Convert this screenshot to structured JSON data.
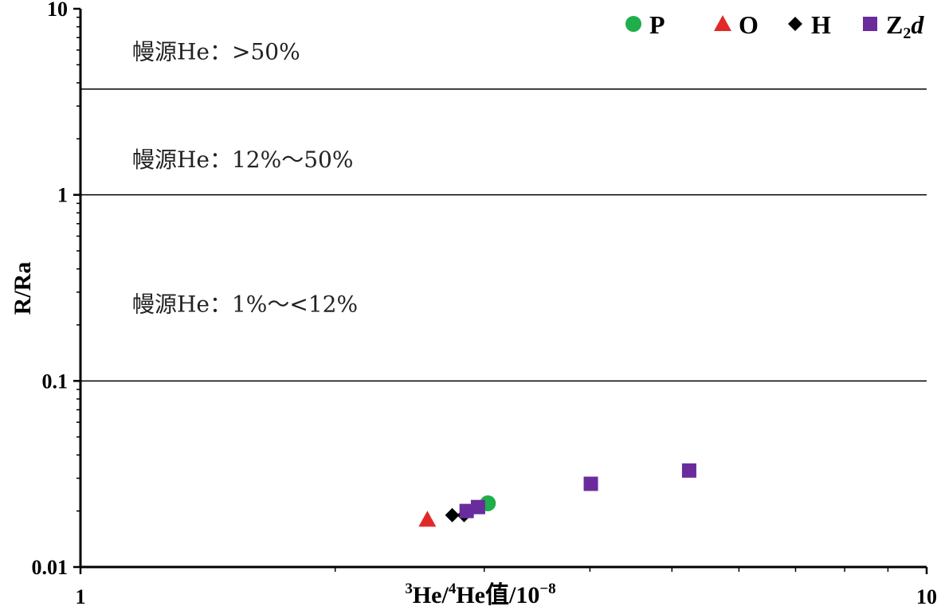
{
  "chart_data": {
    "type": "scatter",
    "xlabel": {
      "sup1": "3",
      "base1": "He/",
      "sup2": "4",
      "base2": "He值/10",
      "sup3": "−8"
    },
    "ylabel": "R/Ra",
    "x_scale": "log",
    "y_scale": "log",
    "xlim": [
      1,
      10
    ],
    "ylim": [
      0.01,
      10
    ],
    "x_ticks": [
      {
        "value": 1,
        "label": "1"
      },
      {
        "value": 10,
        "label": "10"
      }
    ],
    "y_ticks": [
      {
        "value": 10,
        "label": "10"
      },
      {
        "value": 1,
        "label": "1"
      },
      {
        "value": 0.1,
        "label": "0.1"
      },
      {
        "value": 0.01,
        "label": "0.01"
      }
    ],
    "reference_lines": [
      3.7,
      1,
      0.1
    ],
    "zones": [
      {
        "label": "幔源He：>50%",
        "y": 5.9
      },
      {
        "label": "幔源He：12%～50%",
        "y": 1.55
      },
      {
        "label": "幔源He：1%～<12%",
        "y": 0.26
      }
    ],
    "legend_position": "top-right",
    "series": [
      {
        "name": "P",
        "marker": "circle",
        "color": "#1fae4b",
        "points": [
          {
            "x": 3.03,
            "y": 0.022
          }
        ]
      },
      {
        "name": "O",
        "marker": "triangle",
        "color": "#e02a2a",
        "points": [
          {
            "x": 2.57,
            "y": 0.018
          }
        ]
      },
      {
        "name": "H",
        "marker": "diamond",
        "color": "#000000",
        "points": [
          {
            "x": 2.75,
            "y": 0.019
          },
          {
            "x": 2.84,
            "y": 0.019
          }
        ]
      },
      {
        "name": "Z",
        "name_sub": "2",
        "name_italic": "d",
        "marker": "square",
        "color": "#6a2c9c",
        "points": [
          {
            "x": 2.86,
            "y": 0.02
          },
          {
            "x": 2.95,
            "y": 0.021
          },
          {
            "x": 4.01,
            "y": 0.028
          },
          {
            "x": 5.24,
            "y": 0.033
          }
        ]
      }
    ]
  }
}
